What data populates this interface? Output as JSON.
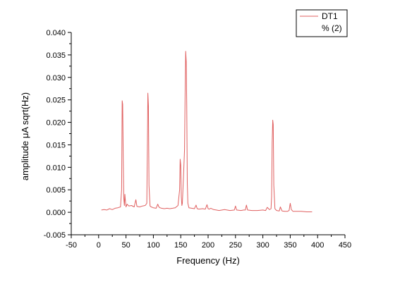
{
  "chart_data": {
    "type": "line",
    "xlabel": "Frequency (Hz)",
    "ylabel": "amplitude  μA sqrt(Hz)",
    "xlim": [
      -50,
      450
    ],
    "ylim": [
      -0.005,
      0.04
    ],
    "x_ticks": [
      "-50",
      "0",
      "50",
      "100",
      "150",
      "200",
      "250",
      "300",
      "350",
      "400",
      "450"
    ],
    "y_ticks": [
      "-0.005",
      "0.000",
      "0.005",
      "0.010",
      "0.015",
      "0.020",
      "0.025",
      "0.030",
      "0.035",
      "0.040"
    ],
    "grid": false,
    "legend_position": "top-right",
    "legend": [
      "DT1",
      "% (2)"
    ],
    "series_color": "#e06060",
    "series": [
      {
        "name": "DT1",
        "x": [
          5,
          10,
          15,
          20,
          25,
          30,
          35,
          40,
          42,
          43,
          44,
          45,
          46,
          47,
          48,
          49,
          50,
          52,
          55,
          60,
          65,
          68,
          70,
          75,
          80,
          85,
          88,
          89,
          90,
          91,
          92,
          94,
          96,
          100,
          105,
          108,
          110,
          112,
          115,
          120,
          125,
          130,
          135,
          140,
          145,
          148,
          149,
          150,
          151,
          152,
          153,
          155,
          157,
          158,
          159,
          160,
          161,
          162,
          163,
          165,
          170,
          175,
          178,
          180,
          183,
          190,
          195,
          198,
          200,
          202,
          205,
          210,
          215,
          220,
          230,
          240,
          248,
          250,
          252,
          260,
          265,
          268,
          270,
          272,
          280,
          290,
          300,
          305,
          308,
          312,
          315,
          316,
          317,
          318,
          319,
          320,
          322,
          325,
          330,
          332,
          335,
          340,
          345,
          348,
          349,
          350,
          352,
          355,
          360,
          370,
          380,
          390
        ],
        "values": [
          0.0005,
          0.0006,
          0.0005,
          0.0008,
          0.0006,
          0.0009,
          0.001,
          0.0012,
          0.005,
          0.0248,
          0.024,
          0.012,
          0.003,
          0.0015,
          0.004,
          0.0025,
          0.0012,
          0.0018,
          0.0014,
          0.0015,
          0.0012,
          0.0028,
          0.0013,
          0.0012,
          0.0014,
          0.0015,
          0.002,
          0.014,
          0.0265,
          0.0237,
          0.006,
          0.0014,
          0.0012,
          0.001,
          0.0009,
          0.0018,
          0.0012,
          0.001,
          0.0009,
          0.0008,
          0.0009,
          0.0008,
          0.0009,
          0.001,
          0.0015,
          0.005,
          0.0118,
          0.0105,
          0.0035,
          0.0015,
          0.002,
          0.008,
          0.014,
          0.026,
          0.0358,
          0.0335,
          0.024,
          0.0065,
          0.002,
          0.001,
          0.0009,
          0.0008,
          0.0016,
          0.0008,
          0.0007,
          0.0008,
          0.0007,
          0.0017,
          0.0008,
          0.0007,
          0.0009,
          0.0006,
          0.0005,
          0.0004,
          0.0006,
          0.0004,
          0.0005,
          0.0014,
          0.0005,
          0.0004,
          0.0005,
          0.0005,
          0.0016,
          0.0005,
          0.0004,
          0.0004,
          0.0005,
          0.0004,
          0.0011,
          0.0006,
          0.0008,
          0.0035,
          0.0155,
          0.0205,
          0.0195,
          0.006,
          0.0008,
          0.0004,
          0.0003,
          0.0012,
          0.0003,
          0.0002,
          0.0002,
          0.0004,
          0.0012,
          0.002,
          0.0006,
          0.0002,
          0.0002,
          0.0002,
          0.0001,
          0.0001
        ]
      },
      {
        "name": "% (2)",
        "x": [],
        "values": []
      }
    ]
  }
}
